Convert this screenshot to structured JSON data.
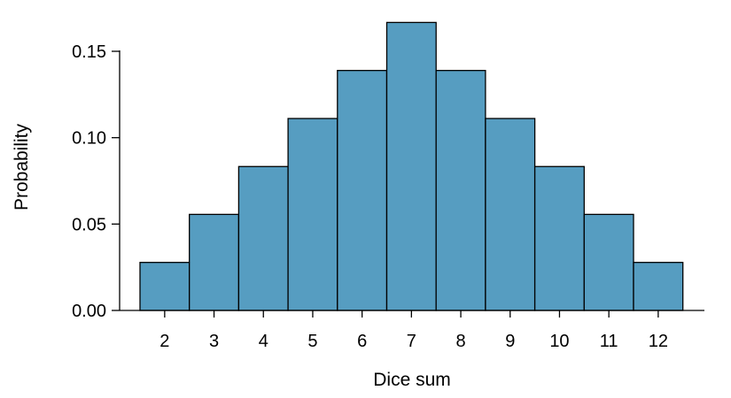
{
  "chart_data": {
    "type": "bar",
    "xlabel": "Dice sum",
    "ylabel": "Probability",
    "categories": [
      "2",
      "3",
      "4",
      "5",
      "6",
      "7",
      "8",
      "9",
      "10",
      "11",
      "12"
    ],
    "values": [
      0.0278,
      0.0556,
      0.0833,
      0.1111,
      0.1389,
      0.1667,
      0.1389,
      0.1111,
      0.0833,
      0.0556,
      0.0278
    ],
    "ylim": [
      0,
      0.15
    ],
    "yticks": [
      "0.00",
      "0.05",
      "0.10",
      "0.15"
    ],
    "grid": false,
    "colors": {
      "bar_fill": "#569dc1",
      "bar_stroke": "#000000"
    }
  }
}
